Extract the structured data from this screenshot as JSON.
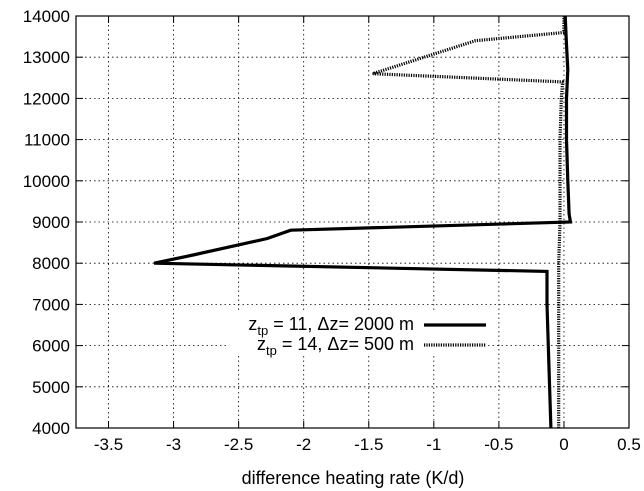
{
  "chart_data": {
    "type": "line",
    "title": "",
    "xlabel": "difference heating rate (K/d)",
    "ylabel": "",
    "xlim": [
      -3.75,
      0.5
    ],
    "ylim": [
      4000,
      14000
    ],
    "x_ticks": [
      -3.5,
      -3,
      -2.5,
      -2,
      -1.5,
      -1,
      -0.5,
      0,
      0.5
    ],
    "x_tick_labels": [
      "-3.5",
      "-3",
      "-2.5",
      "-2",
      "-1.5",
      "-1",
      "-0.5",
      "0",
      "0.5"
    ],
    "y_ticks": [
      4000,
      5000,
      6000,
      7000,
      8000,
      9000,
      10000,
      11000,
      12000,
      13000,
      14000
    ],
    "y_tick_labels": [
      "4000",
      "5000",
      "6000",
      "7000",
      "8000",
      "9000",
      "10000",
      "11000",
      "12000",
      "13000",
      "14000"
    ],
    "grid": true,
    "legend_position": "center-right",
    "series": [
      {
        "name_main": "z",
        "name_sub": "tp",
        "name_rest": " = 11, Δz= 2000 m",
        "style": "solid",
        "color": "#000000",
        "points": [
          [
            -0.1,
            4000
          ],
          [
            -0.11,
            5000
          ],
          [
            -0.12,
            6000
          ],
          [
            -0.13,
            7000
          ],
          [
            -0.13,
            7800
          ],
          [
            -3.15,
            8000
          ],
          [
            -2.85,
            8200
          ],
          [
            -2.28,
            8600
          ],
          [
            -2.1,
            8800
          ],
          [
            0.05,
            9000
          ],
          [
            0.04,
            9200
          ],
          [
            0.03,
            10000
          ],
          [
            0.02,
            11000
          ],
          [
            0.02,
            12000
          ],
          [
            0.03,
            12700
          ],
          [
            0.02,
            13300
          ],
          [
            0.01,
            14000
          ]
        ]
      },
      {
        "name_main": "z",
        "name_sub": "tp",
        "name_rest": " = 14, Δz=  500 m",
        "style": "dotted",
        "color": "#000000",
        "points": [
          [
            -0.04,
            4000
          ],
          [
            -0.04,
            5000
          ],
          [
            -0.04,
            6000
          ],
          [
            -0.04,
            7000
          ],
          [
            -0.04,
            8000
          ],
          [
            -0.03,
            9000
          ],
          [
            -0.03,
            10000
          ],
          [
            -0.03,
            11000
          ],
          [
            -0.02,
            12000
          ],
          [
            -0.01,
            12400
          ],
          [
            -1.47,
            12600
          ],
          [
            -0.68,
            13400
          ],
          [
            0.0,
            13600
          ],
          [
            0.0,
            14000
          ]
        ]
      }
    ]
  }
}
